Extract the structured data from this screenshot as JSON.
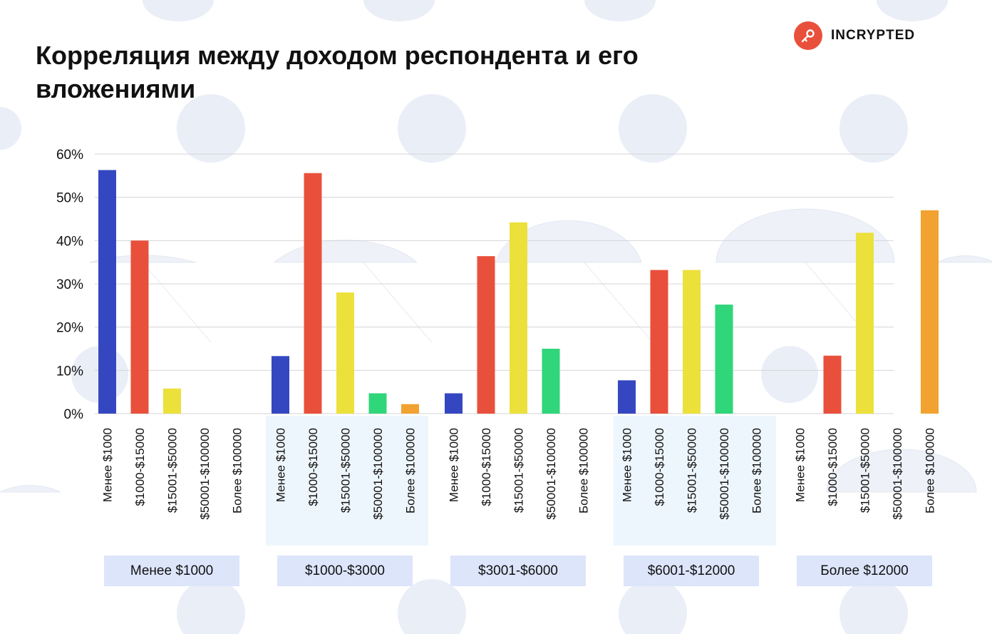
{
  "title": "Корреляция между доходом респондента и его вложениями",
  "logo": {
    "name": "INCRYPTED",
    "icon": "key-icon",
    "color": "#e9503c"
  },
  "chart_data": {
    "type": "bar",
    "ylim": [
      0,
      60
    ],
    "yticks": [
      "0%",
      "10%",
      "20%",
      "30%",
      "40%",
      "50%",
      "60%"
    ],
    "grid": true,
    "legend": "none",
    "categories": [
      "Менее $1000",
      "$1000-$15000",
      "$15001-$50000",
      "$50001-$100000",
      "Более $100000"
    ],
    "category_colors": [
      "#3547c0",
      "#e9503c",
      "#ece03a",
      "#2fd67a",
      "#f2a230"
    ],
    "groups": [
      {
        "label": "Менее $1000",
        "values": [
          56.3,
          40.0,
          5.8,
          0,
          0
        ]
      },
      {
        "label": "$1000-$3000",
        "values": [
          13.3,
          55.6,
          28.0,
          4.7,
          2.2
        ]
      },
      {
        "label": "$3001-$6000",
        "values": [
          4.7,
          36.4,
          44.2,
          15.0,
          0
        ]
      },
      {
        "label": "$6001-$12000",
        "values": [
          7.7,
          33.2,
          33.2,
          25.2,
          0
        ]
      },
      {
        "label": "Более $12000",
        "values": [
          0,
          13.4,
          41.8,
          0,
          47.0
        ]
      }
    ]
  }
}
